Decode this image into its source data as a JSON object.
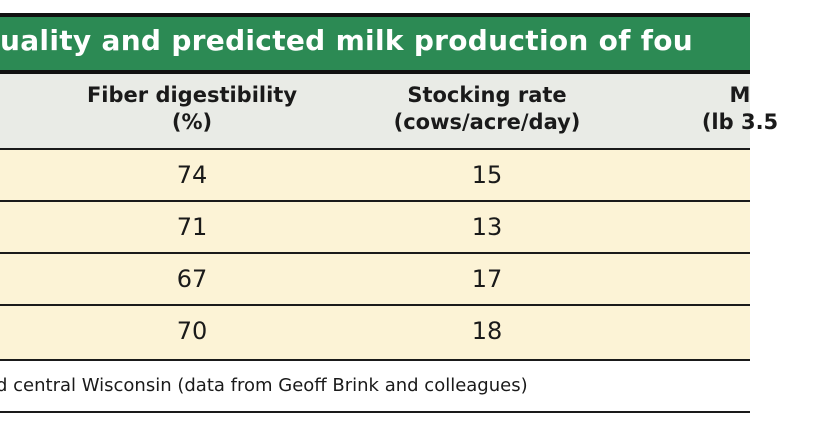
{
  "table": {
    "title": "uality and predicted milk production of fou",
    "headers": {
      "fiber": [
        "Fiber digestibility",
        "(%)"
      ],
      "stocking": [
        "Stocking rate",
        "(cows/acre/day)"
      ],
      "milk": [
        "M",
        "(lb 3.5"
      ]
    },
    "rows": [
      {
        "fiber": "74",
        "stocking": "15"
      },
      {
        "fiber": "71",
        "stocking": "13"
      },
      {
        "fiber": "67",
        "stocking": "17"
      },
      {
        "fiber": "70",
        "stocking": "18"
      }
    ],
    "footnote": "d central Wisconsin (data from Geoff Brink and colleagues)"
  },
  "colors": {
    "title_bar": "#2c8a54",
    "header_bg": "#e9ebe6",
    "row_bg": "#fcf3d6",
    "rule": "#1a1a1a"
  }
}
